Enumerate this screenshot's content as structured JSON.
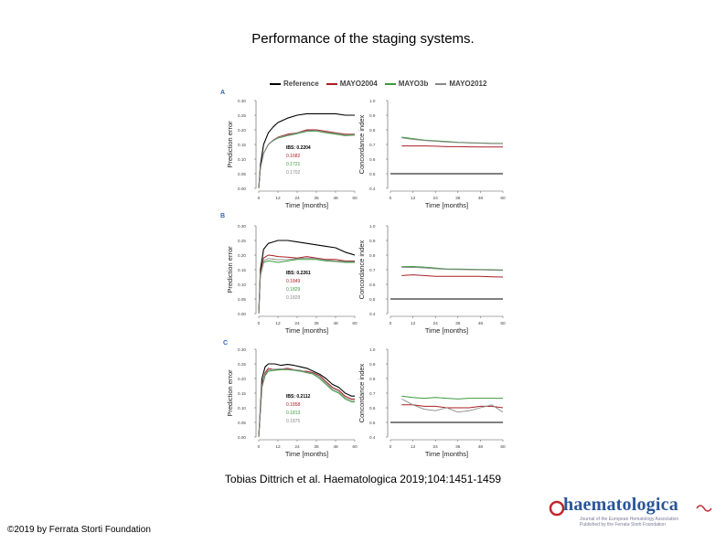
{
  "slide": {
    "title": "Performance of the staging systems.",
    "citation": "Tobias Dittrich et al. Haematologica 2019;104:1451-1459",
    "copyright": "©2019 by Ferrata Storti Foundation",
    "logo": {
      "text": "haematologica",
      "subtitle_line1": "Journal of the European Hematology Association",
      "subtitle_line2": "Published by the Ferrata Storti Foundation"
    }
  },
  "legend": [
    {
      "name": "Reference",
      "color": "#000000"
    },
    {
      "name": "MAYO2004",
      "color": "#aa1f24"
    },
    {
      "name": "MAYO3b",
      "color": "#3c9a3c"
    },
    {
      "name": "MAYO2012",
      "color": "#888888"
    }
  ],
  "chart_data": [
    {
      "panel": "A",
      "type": "line",
      "xlabel": "Time [months]",
      "ylabel": "Prediction error",
      "xticks": [
        0,
        12,
        24,
        36,
        48,
        60
      ],
      "yticks": [
        "0.00",
        "0.05",
        "0.10",
        "0.15",
        "0.20",
        "0.25",
        "0.30"
      ],
      "xlim": [
        0,
        60
      ],
      "ylim": [
        0,
        0.3
      ],
      "ibs_labels": [
        "IBS: 0.2204",
        "0.1682",
        "0.1721",
        "0.1702"
      ],
      "series": [
        {
          "name": "Reference",
          "x": [
            0,
            1,
            3,
            6,
            9,
            12,
            18,
            24,
            30,
            36,
            42,
            48,
            54,
            60
          ],
          "values": [
            0,
            0.08,
            0.15,
            0.19,
            0.21,
            0.225,
            0.24,
            0.25,
            0.255,
            0.255,
            0.255,
            0.255,
            0.25,
            0.25
          ]
        },
        {
          "name": "MAYO2004",
          "x": [
            0,
            1,
            3,
            6,
            9,
            12,
            18,
            24,
            30,
            36,
            42,
            48,
            54,
            60
          ],
          "values": [
            0,
            0.07,
            0.12,
            0.15,
            0.165,
            0.175,
            0.185,
            0.19,
            0.2,
            0.2,
            0.195,
            0.19,
            0.185,
            0.185
          ]
        },
        {
          "name": "MAYO3b",
          "x": [
            0,
            1,
            3,
            6,
            9,
            12,
            18,
            24,
            30,
            36,
            42,
            48,
            54,
            60
          ],
          "values": [
            0,
            0.07,
            0.12,
            0.15,
            0.163,
            0.172,
            0.18,
            0.187,
            0.195,
            0.196,
            0.19,
            0.185,
            0.18,
            0.182
          ]
        },
        {
          "name": "MAYO2012",
          "x": [
            0,
            1,
            3,
            6,
            9,
            12,
            18,
            24,
            30,
            36,
            42,
            48,
            54,
            60
          ],
          "values": [
            0,
            0.07,
            0.12,
            0.15,
            0.164,
            0.174,
            0.182,
            0.19,
            0.197,
            0.198,
            0.192,
            0.188,
            0.183,
            0.184
          ]
        }
      ]
    },
    {
      "panel": "A",
      "type": "line",
      "xlabel": "Time [months]",
      "ylabel": "Concordance index",
      "xticks": [
        0,
        12,
        24,
        36,
        48,
        60
      ],
      "yticks": [
        "0.4",
        "0.5",
        "0.6",
        "0.7",
        "0.8",
        "0.9",
        "1.0"
      ],
      "xlim": [
        0,
        60
      ],
      "ylim": [
        0.4,
        1.0
      ],
      "series": [
        {
          "name": "Reference",
          "x": [
            0,
            60
          ],
          "values": [
            0.5,
            0.5
          ]
        },
        {
          "name": "MAYO2004",
          "x": [
            6,
            12,
            18,
            24,
            30,
            36,
            42,
            48,
            54,
            60
          ],
          "values": [
            0.69,
            0.69,
            0.69,
            0.688,
            0.685,
            0.685,
            0.684,
            0.683,
            0.683,
            0.683
          ]
        },
        {
          "name": "MAYO3b",
          "x": [
            6,
            12,
            18,
            24,
            30,
            36,
            42,
            48,
            54,
            60
          ],
          "values": [
            0.75,
            0.74,
            0.73,
            0.725,
            0.72,
            0.715,
            0.712,
            0.71,
            0.708,
            0.707
          ]
        },
        {
          "name": "MAYO2012",
          "x": [
            6,
            12,
            18,
            24,
            30,
            36,
            42,
            48,
            54,
            60
          ],
          "values": [
            0.745,
            0.735,
            0.727,
            0.722,
            0.717,
            0.713,
            0.71,
            0.708,
            0.706,
            0.705
          ]
        }
      ]
    },
    {
      "panel": "B",
      "type": "line",
      "xlabel": "Time [months]",
      "ylabel": "Prediction error",
      "xticks": [
        0,
        12,
        24,
        36,
        48,
        60
      ],
      "yticks": [
        "0.00",
        "0.05",
        "0.10",
        "0.15",
        "0.20",
        "0.25",
        "0.30"
      ],
      "xlim": [
        0,
        60
      ],
      "ylim": [
        0,
        0.3
      ],
      "ibs_labels": [
        "IBS: 0.2261",
        "0.1849",
        "0.1829",
        "0.1829"
      ],
      "series": [
        {
          "name": "Reference",
          "x": [
            0,
            1,
            3,
            6,
            9,
            12,
            18,
            24,
            30,
            36,
            42,
            48,
            54,
            60
          ],
          "values": [
            0,
            0.15,
            0.22,
            0.24,
            0.245,
            0.25,
            0.25,
            0.245,
            0.24,
            0.235,
            0.23,
            0.225,
            0.21,
            0.2
          ]
        },
        {
          "name": "MAYO2004",
          "x": [
            0,
            1,
            3,
            6,
            9,
            12,
            18,
            24,
            30,
            36,
            42,
            48,
            54,
            60
          ],
          "values": [
            0,
            0.14,
            0.19,
            0.2,
            0.198,
            0.195,
            0.193,
            0.19,
            0.195,
            0.19,
            0.185,
            0.185,
            0.18,
            0.18
          ]
        },
        {
          "name": "MAYO3b",
          "x": [
            0,
            1,
            3,
            6,
            9,
            12,
            18,
            24,
            30,
            36,
            42,
            48,
            54,
            60
          ],
          "values": [
            0,
            0.13,
            0.175,
            0.18,
            0.178,
            0.175,
            0.18,
            0.185,
            0.185,
            0.185,
            0.18,
            0.178,
            0.175,
            0.175
          ]
        },
        {
          "name": "MAYO2012",
          "x": [
            0,
            1,
            3,
            6,
            9,
            12,
            18,
            24,
            30,
            36,
            42,
            48,
            54,
            60
          ],
          "values": [
            0,
            0.135,
            0.18,
            0.188,
            0.186,
            0.184,
            0.185,
            0.188,
            0.19,
            0.188,
            0.183,
            0.18,
            0.178,
            0.178
          ]
        }
      ]
    },
    {
      "panel": "B",
      "type": "line",
      "xlabel": "Time [months]",
      "ylabel": "Concordance index",
      "xticks": [
        0,
        12,
        24,
        36,
        48,
        60
      ],
      "yticks": [
        "0.4",
        "0.5",
        "0.6",
        "0.7",
        "0.8",
        "0.9",
        "1.0"
      ],
      "xlim": [
        0,
        60
      ],
      "ylim": [
        0.4,
        1.0
      ],
      "series": [
        {
          "name": "Reference",
          "x": [
            0,
            60
          ],
          "values": [
            0.5,
            0.5
          ]
        },
        {
          "name": "MAYO2004",
          "x": [
            6,
            12,
            18,
            24,
            30,
            36,
            42,
            48,
            54,
            60
          ],
          "values": [
            0.66,
            0.665,
            0.66,
            0.655,
            0.655,
            0.655,
            0.655,
            0.655,
            0.652,
            0.65
          ]
        },
        {
          "name": "MAYO3b",
          "x": [
            6,
            12,
            18,
            24,
            30,
            36,
            42,
            48,
            54,
            60
          ],
          "values": [
            0.72,
            0.722,
            0.718,
            0.712,
            0.705,
            0.705,
            0.703,
            0.702,
            0.7,
            0.698
          ]
        },
        {
          "name": "MAYO2012",
          "x": [
            6,
            12,
            18,
            24,
            30,
            36,
            42,
            48,
            54,
            60
          ],
          "values": [
            0.715,
            0.716,
            0.712,
            0.707,
            0.702,
            0.701,
            0.7,
            0.699,
            0.697,
            0.695
          ]
        }
      ]
    },
    {
      "panel": "C",
      "type": "line",
      "xlabel": "Time [months]",
      "ylabel": "Prediction error",
      "xticks": [
        0,
        12,
        24,
        36,
        48,
        60
      ],
      "yticks": [
        "0.00",
        "0.05",
        "0.10",
        "0.15",
        "0.20",
        "0.25",
        "0.30"
      ],
      "xlim": [
        0,
        60
      ],
      "ylim": [
        0,
        0.3
      ],
      "ibs_labels": [
        "IBS: 0.2112",
        "0.1858",
        "0.1813",
        "0.1875"
      ],
      "series": [
        {
          "name": "Reference",
          "x": [
            0,
            2,
            4,
            6,
            10,
            14,
            18,
            22,
            26,
            30,
            34,
            38,
            42,
            46,
            50,
            54,
            58,
            60
          ],
          "values": [
            0,
            0.2,
            0.24,
            0.25,
            0.25,
            0.245,
            0.248,
            0.245,
            0.24,
            0.235,
            0.225,
            0.215,
            0.2,
            0.18,
            0.17,
            0.15,
            0.14,
            0.14
          ]
        },
        {
          "name": "MAYO2004",
          "x": [
            0,
            2,
            4,
            6,
            10,
            14,
            18,
            22,
            26,
            30,
            34,
            38,
            42,
            46,
            50,
            54,
            58,
            60
          ],
          "values": [
            0,
            0.18,
            0.22,
            0.235,
            0.23,
            0.232,
            0.235,
            0.23,
            0.225,
            0.225,
            0.22,
            0.21,
            0.19,
            0.17,
            0.16,
            0.14,
            0.13,
            0.13
          ]
        },
        {
          "name": "MAYO3b",
          "x": [
            0,
            2,
            4,
            6,
            10,
            14,
            18,
            22,
            26,
            30,
            34,
            38,
            42,
            46,
            50,
            54,
            58,
            60
          ],
          "values": [
            0,
            0.17,
            0.21,
            0.225,
            0.228,
            0.23,
            0.23,
            0.228,
            0.225,
            0.22,
            0.215,
            0.2,
            0.18,
            0.16,
            0.15,
            0.13,
            0.12,
            0.12
          ]
        },
        {
          "name": "MAYO2012",
          "x": [
            0,
            2,
            4,
            6,
            10,
            14,
            18,
            22,
            26,
            30,
            34,
            38,
            42,
            46,
            50,
            54,
            58,
            60
          ],
          "values": [
            0,
            0.175,
            0.215,
            0.23,
            0.232,
            0.233,
            0.232,
            0.23,
            0.228,
            0.222,
            0.218,
            0.205,
            0.185,
            0.165,
            0.155,
            0.135,
            0.125,
            0.125
          ]
        }
      ]
    },
    {
      "panel": "C",
      "type": "line",
      "xlabel": "Time [months]",
      "ylabel": "Concordance index",
      "xticks": [
        0,
        12,
        24,
        36,
        48,
        60
      ],
      "yticks": [
        "0.4",
        "0.5",
        "0.6",
        "0.7",
        "0.8",
        "0.9",
        "1.0"
      ],
      "xlim": [
        0,
        60
      ],
      "ylim": [
        0.4,
        1.0
      ],
      "series": [
        {
          "name": "Reference",
          "x": [
            0,
            60
          ],
          "values": [
            0.5,
            0.5
          ]
        },
        {
          "name": "MAYO2004",
          "x": [
            6,
            12,
            18,
            24,
            30,
            36,
            42,
            48,
            54,
            60
          ],
          "values": [
            0.62,
            0.62,
            0.61,
            0.61,
            0.6,
            0.6,
            0.6,
            0.61,
            0.61,
            0.6
          ]
        },
        {
          "name": "MAYO3b",
          "x": [
            6,
            12,
            18,
            24,
            30,
            36,
            42,
            48,
            54,
            60
          ],
          "values": [
            0.68,
            0.67,
            0.665,
            0.67,
            0.665,
            0.66,
            0.665,
            0.665,
            0.665,
            0.665
          ]
        },
        {
          "name": "MAYO2012",
          "x": [
            6,
            12,
            18,
            24,
            30,
            36,
            42,
            48,
            54,
            60
          ],
          "values": [
            0.66,
            0.62,
            0.59,
            0.58,
            0.6,
            0.57,
            0.58,
            0.6,
            0.62,
            0.57
          ]
        }
      ]
    }
  ]
}
